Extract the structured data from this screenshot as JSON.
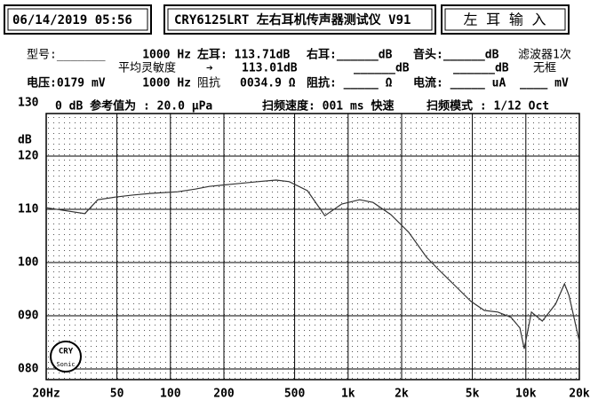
{
  "header": {
    "datetime": "06/14/2019 05:56",
    "instrument": "CRY6125LRT 左右耳机传声器测试仪 V91",
    "channel": "左 耳  输 入"
  },
  "info": {
    "rows": [
      [
        "型号:_______",
        "1000 Hz",
        "左耳: 113.71dB",
        "右耳:______dB",
        "音头:______dB",
        "滤波器1次"
      ],
      [
        "平均灵敏度",
        "➔",
        "113.01dB",
        "______dB",
        "______dB",
        "无框"
      ],
      [
        "电压:0179 mV",
        "1000 Hz",
        "阻抗",
        "0034.9 Ω",
        "阻抗: _____ Ω",
        "电流: _____ uA",
        "____ mV"
      ]
    ]
  },
  "settings": {
    "reference": "0 dB 参考值为 : 20.0 μPa",
    "sweep_speed": "扫频速度: 001 ms 快速",
    "sweep_mode": "扫频模式 : 1/12 Oct"
  },
  "logo": {
    "top": "CRY",
    "bottom": "Sonic"
  },
  "chart_data": {
    "type": "line",
    "y_label": "dB",
    "x_log": true,
    "grid": true,
    "color": "#333333",
    "xlim": [
      20,
      20000
    ],
    "ylim": [
      78,
      130
    ],
    "xticks": [
      {
        "value": 20,
        "label": "20Hz"
      },
      50,
      100,
      200,
      500,
      {
        "value": 1000,
        "label": "1k"
      },
      {
        "value": 2000,
        "label": "2k"
      },
      {
        "value": 5000,
        "label": "5k"
      },
      {
        "value": 10000,
        "label": "10k"
      },
      {
        "value": 20000,
        "label": "20k"
      }
    ],
    "yticks": [
      130,
      120,
      110,
      100,
      {
        "value": 90,
        "label": "090"
      },
      {
        "value": 80,
        "label": "080"
      }
    ],
    "x": [
      20,
      33,
      39,
      49,
      62,
      78,
      110,
      138,
      165,
      218,
      310,
      393,
      466,
      590,
      740,
      920,
      1160,
      1380,
      1740,
      2190,
      2760,
      3270,
      3900,
      4910,
      5840,
      6950,
      8250,
      9260,
      9800,
      10750,
      12370,
      14700,
      16500,
      17500,
      20000
    ],
    "values": [
      110.3,
      109.2,
      111.8,
      112.3,
      112.7,
      113,
      113.3,
      113.8,
      114.3,
      114.7,
      115.2,
      115.5,
      115.2,
      113.5,
      108.8,
      111,
      111.8,
      111.3,
      109,
      105.7,
      101,
      98.5,
      96,
      92.7,
      91,
      90.7,
      89.7,
      87.7,
      83.8,
      90.7,
      89,
      92.2,
      96,
      93.8,
      85.2
    ]
  }
}
